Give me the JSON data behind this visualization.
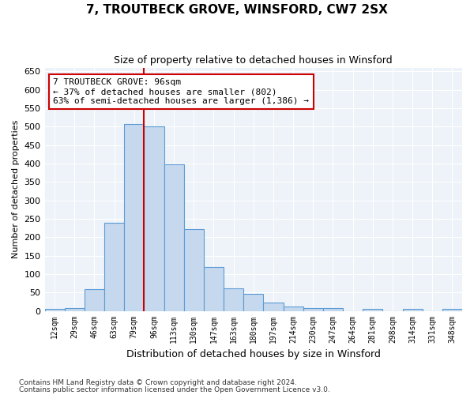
{
  "title_line1": "7, TROUTBECK GROVE, WINSFORD, CW7 2SX",
  "title_line2": "Size of property relative to detached houses in Winsford",
  "xlabel": "Distribution of detached houses by size in Winsford",
  "ylabel": "Number of detached properties",
  "bar_color": "#c5d8ed",
  "bar_edge_color": "#5b9bd5",
  "bg_color": "#eef3f9",
  "grid_color": "#ffffff",
  "bin_labels": [
    "12sqm",
    "29sqm",
    "46sqm",
    "63sqm",
    "79sqm",
    "96sqm",
    "113sqm",
    "130sqm",
    "147sqm",
    "163sqm",
    "180sqm",
    "197sqm",
    "214sqm",
    "230sqm",
    "247sqm",
    "264sqm",
    "281sqm",
    "298sqm",
    "314sqm",
    "331sqm",
    "348sqm"
  ],
  "bar_heights": [
    5,
    8,
    58,
    238,
    507,
    500,
    397,
    222,
    120,
    62,
    47,
    22,
    12,
    8,
    8,
    0,
    5,
    0,
    6,
    0,
    6
  ],
  "vline_x_index": 5,
  "annotation_text": "7 TROUTBECK GROVE: 96sqm\n← 37% of detached houses are smaller (802)\n63% of semi-detached houses are larger (1,386) →",
  "annotation_box_color": "#ffffff",
  "annotation_box_edge_color": "#cc0000",
  "vline_color": "#cc0000",
  "footer_line1": "Contains HM Land Registry data © Crown copyright and database right 2024.",
  "footer_line2": "Contains public sector information licensed under the Open Government Licence v3.0.",
  "ylim": [
    0,
    660
  ],
  "yticks": [
    0,
    50,
    100,
    150,
    200,
    250,
    300,
    350,
    400,
    450,
    500,
    550,
    600,
    650
  ]
}
